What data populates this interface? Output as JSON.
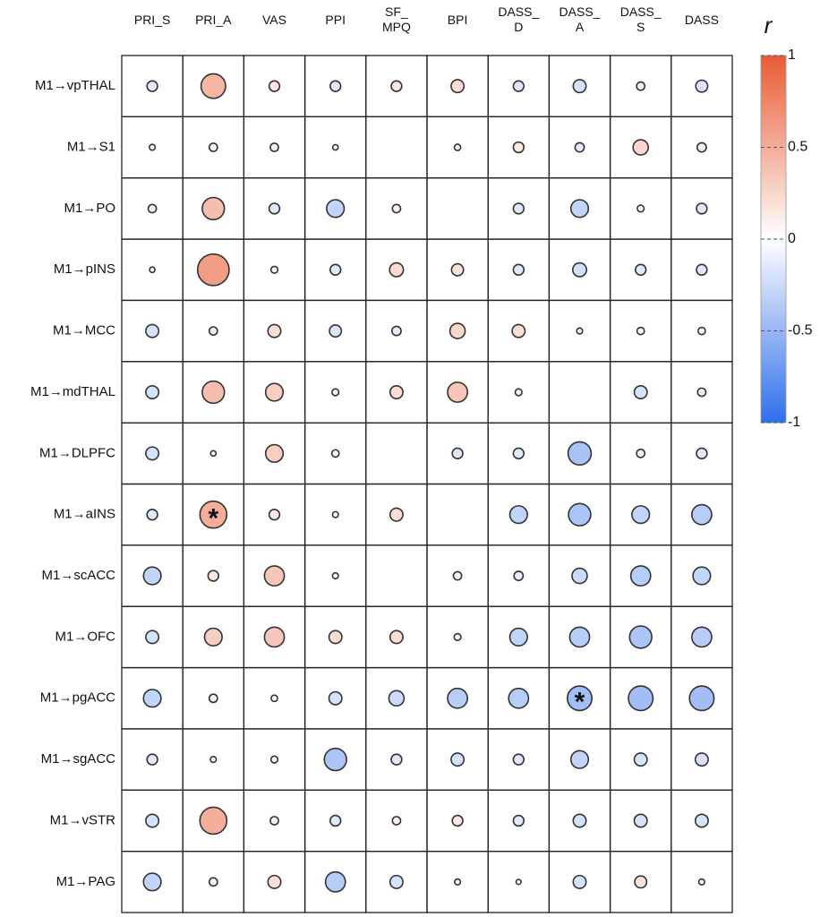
{
  "chart_data": {
    "type": "correlation-matrix",
    "columns": [
      "PRI_S",
      "PRI_A",
      "VAS",
      "PPI",
      "SF_\nMPQ",
      "BPI",
      "DASS_\nD",
      "DASS_\nA",
      "DASS_\nS",
      "DASS"
    ],
    "rows": [
      "M1→vpTHAL",
      "M1→S1",
      "M1→PO",
      "M1→pINS",
      "M1→MCC",
      "M1→mdTHAL",
      "M1→DLPFC",
      "M1→aINS",
      "M1→scACC",
      "M1→OFC",
      "M1→pgACC",
      "M1→sgACC",
      "M1→vSTR",
      "M1→PAG"
    ],
    "values": [
      [
        -0.15,
        0.45,
        0.15,
        -0.15,
        0.15,
        0.2,
        -0.15,
        -0.2,
        -0.1,
        -0.18
      ],
      [
        0.05,
        0.1,
        0.1,
        0.04,
        null,
        0.06,
        0.15,
        -0.12,
        0.25,
        0.12
      ],
      [
        0.1,
        0.4,
        -0.15,
        -0.3,
        0.1,
        null,
        -0.15,
        -0.3,
        0.07,
        -0.15
      ],
      [
        0.04,
        0.6,
        0.07,
        -0.15,
        0.22,
        0.18,
        -0.15,
        -0.22,
        -0.15,
        -0.15
      ],
      [
        -0.2,
        -0.1,
        0.2,
        -0.18,
        -0.12,
        0.25,
        0.2,
        -0.05,
        0.08,
        0.08
      ],
      [
        -0.2,
        0.4,
        0.3,
        0.07,
        0.2,
        0.35,
        0.07,
        null,
        -0.2,
        -0.1
      ],
      [
        -0.2,
        0.04,
        0.3,
        0.08,
        null,
        -0.15,
        -0.15,
        -0.42,
        -0.1,
        -0.15
      ],
      [
        -0.15,
        0.5,
        0.15,
        0.05,
        0.2,
        null,
        -0.3,
        -0.4,
        -0.3,
        -0.35
      ],
      [
        -0.3,
        0.15,
        0.35,
        0.05,
        null,
        0.1,
        -0.12,
        -0.25,
        -0.35,
        -0.3
      ],
      [
        -0.2,
        0.3,
        0.35,
        0.2,
        0.2,
        0.07,
        -0.3,
        -0.35,
        -0.4,
        -0.35
      ],
      [
        -0.3,
        -0.1,
        0.06,
        -0.2,
        -0.25,
        -0.35,
        -0.35,
        -0.45,
        -0.45,
        -0.45
      ],
      [
        -0.15,
        0.05,
        0.07,
        -0.4,
        -0.15,
        -0.2,
        -0.15,
        -0.3,
        -0.2,
        -0.2
      ],
      [
        -0.2,
        0.5,
        0.1,
        -0.15,
        0.1,
        0.15,
        -0.15,
        -0.2,
        -0.2,
        -0.2
      ],
      [
        -0.3,
        0.1,
        0.2,
        -0.35,
        -0.2,
        0.05,
        0.03,
        -0.2,
        0.18,
        0.05
      ]
    ],
    "annotations": [
      {
        "text": "*",
        "row": "M1→aINS",
        "column": "PRI_A"
      },
      {
        "text": "*",
        "row": "M1→pgACC",
        "column": "DASS_\nA"
      }
    ],
    "colorbar_label": "r",
    "clim": [
      -1,
      1
    ],
    "cticks": [
      1,
      0.5,
      0,
      -0.5,
      -1
    ],
    "colormap": [
      "#2f6fec",
      "#ffffff",
      "#e85c34"
    ]
  }
}
